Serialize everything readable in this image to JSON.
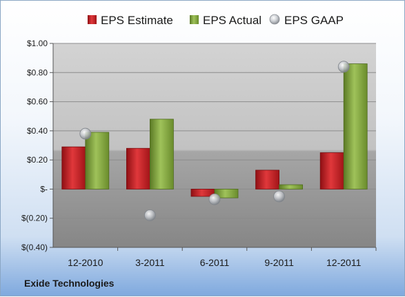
{
  "company": "Exide Technologies",
  "colors": {
    "estimate": "#c41e22",
    "actual": "#7da13a",
    "gaap": "#b9bcc0"
  },
  "chart_data": {
    "type": "bar",
    "categories": [
      "12-2010",
      "3-2011",
      "6-2011",
      "9-2011",
      "12-2011"
    ],
    "series": [
      {
        "name": "EPS Estimate",
        "type": "bar",
        "values": [
          0.29,
          0.28,
          -0.05,
          0.13,
          0.25
        ]
      },
      {
        "name": "EPS Actual",
        "type": "bar",
        "values": [
          0.39,
          0.48,
          -0.06,
          0.03,
          0.86
        ]
      },
      {
        "name": "EPS GAAP",
        "type": "scatter",
        "values": [
          0.38,
          -0.18,
          -0.07,
          -0.05,
          0.84
        ]
      }
    ],
    "ylim": [
      -0.4,
      1.0
    ],
    "yticks": [
      1.0,
      0.8,
      0.6,
      0.4,
      0.2,
      0,
      -0.2,
      -0.4
    ],
    "ytick_labels": [
      "$1.00",
      "$0.80",
      "$0.60",
      "$0.40",
      "$0.20",
      "$-",
      "$(0.20)",
      "$(0.40)"
    ],
    "grid": true,
    "legend_position": "top"
  }
}
